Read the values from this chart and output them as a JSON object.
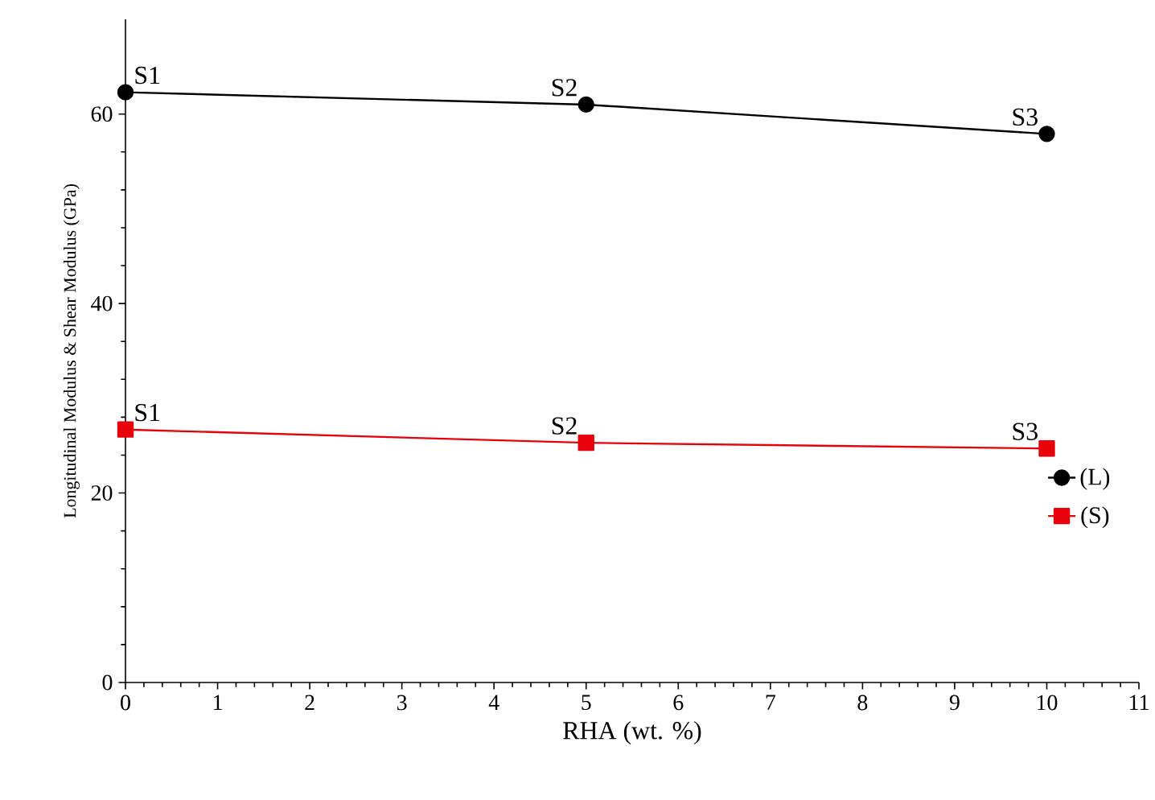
{
  "chart_data": {
    "type": "line",
    "xlabel": "RHA (wt. %)",
    "ylabel": "Longitudinal  Modulus & Shear Modulus  (GPa)",
    "x": [
      0,
      5,
      10
    ],
    "xlim": [
      0,
      11
    ],
    "xticks": [
      0,
      1,
      2,
      3,
      4,
      5,
      6,
      7,
      8,
      9,
      10,
      11
    ],
    "ylim": [
      0,
      70
    ],
    "yticks": [
      0,
      20,
      40,
      60
    ],
    "series": [
      {
        "name": "(L)",
        "color": "#000000",
        "values": [
          62.3,
          61.0,
          57.9
        ],
        "marker": "circle"
      },
      {
        "name": "(S)",
        "color": "#e8000b",
        "values": [
          26.7,
          25.3,
          24.7
        ],
        "marker": "square"
      }
    ],
    "annotations": [
      {
        "text": "S1",
        "x": 0,
        "y": 62.3
      },
      {
        "text": "S2",
        "x": 5,
        "y": 61.0
      },
      {
        "text": "S3",
        "x": 10,
        "y": 57.9
      },
      {
        "text": "S1",
        "x": 0,
        "y": 26.7
      },
      {
        "text": "S2",
        "x": 5,
        "y": 25.3
      },
      {
        "text": "S3",
        "x": 10,
        "y": 24.7
      }
    ],
    "legend": "right",
    "grid": false,
    "line_style": "solid"
  }
}
